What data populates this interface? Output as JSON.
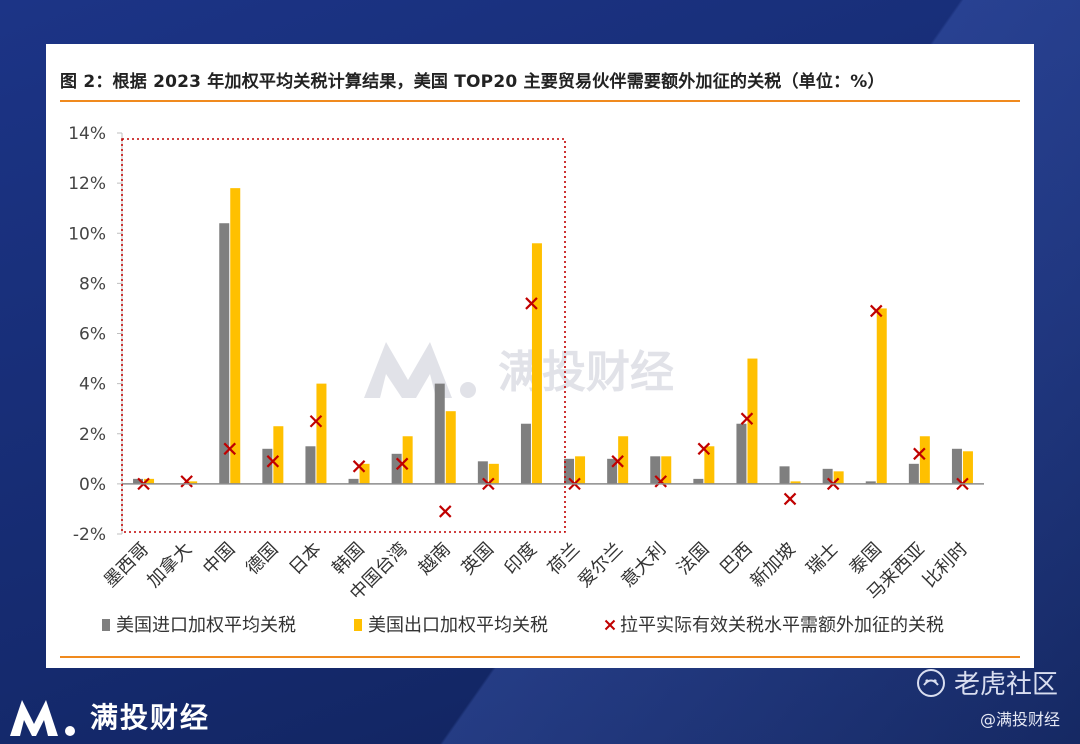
{
  "title": "图 2：根据 2023 年加权平均关税计算结果，美国 TOP20 主要贸易伙伴需要额外加征的关税（单位：%）",
  "watermark": "满投财经",
  "brand": {
    "name": "满投财经"
  },
  "footer": {
    "platform": "老虎社区",
    "author": "@满投财经"
  },
  "colors": {
    "import": "#7f7f7f",
    "export": "#ffc000",
    "marker": "#c00000",
    "accent": "#f08a1e"
  },
  "chart_data": {
    "type": "bar",
    "title": "图 2：根据 2023 年加权平均关税计算结果，美国 TOP20 主要贸易伙伴需要额外加征的关税（单位：%）",
    "categories": [
      "墨西哥",
      "加拿大",
      "中国",
      "德国",
      "日本",
      "韩国",
      "中国台湾",
      "越南",
      "英国",
      "印度",
      "荷兰",
      "爱尔兰",
      "意大利",
      "法国",
      "巴西",
      "新加坡",
      "瑞士",
      "泰国",
      "马来西亚",
      "比利时"
    ],
    "series": [
      {
        "name": "美国进口加权平均关税",
        "kind": "bar",
        "values": [
          0.2,
          0.0,
          10.4,
          1.4,
          1.5,
          0.2,
          1.2,
          4.0,
          0.9,
          2.4,
          1.0,
          1.0,
          1.1,
          0.2,
          2.4,
          0.7,
          0.6,
          0.1,
          0.8,
          1.4
        ]
      },
      {
        "name": "美国出口加权平均关税",
        "kind": "bar",
        "values": [
          0.2,
          0.1,
          11.8,
          2.3,
          4.0,
          0.8,
          1.9,
          2.9,
          0.8,
          9.6,
          1.1,
          1.9,
          1.1,
          1.5,
          5.0,
          0.1,
          0.5,
          7.0,
          1.9,
          1.3
        ]
      },
      {
        "name": "拉平实际有效关税水平需额外加征的关税",
        "kind": "marker",
        "values": [
          0.0,
          0.1,
          1.4,
          0.9,
          2.5,
          0.7,
          0.8,
          -1.1,
          0.0,
          7.2,
          0.0,
          0.9,
          0.1,
          1.4,
          2.6,
          -0.6,
          0.0,
          6.9,
          1.2,
          0.0
        ]
      }
    ],
    "y_ticks": [
      "14%",
      "12%",
      "10%",
      "8%",
      "6%",
      "4%",
      "2%",
      "0%",
      "-2%"
    ],
    "ylim": [
      -2,
      14
    ],
    "highlight_box": {
      "from_category": "墨西哥",
      "to_category": "印度"
    },
    "legend_placement": "bottom",
    "grid": false
  }
}
